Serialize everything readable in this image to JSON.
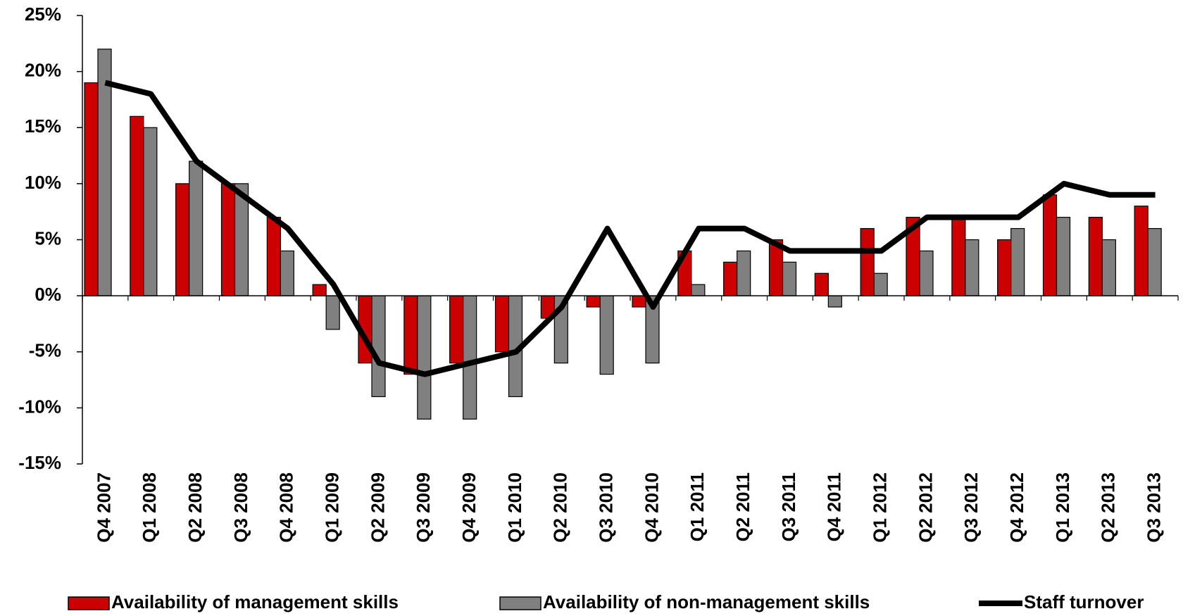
{
  "chart_data": {
    "type": "bar_line",
    "categories": [
      "Q4 2007",
      "Q1 2008",
      "Q2 2008",
      "Q3 2008",
      "Q4 2008",
      "Q1 2009",
      "Q2 2009",
      "Q3 2009",
      "Q4 2009",
      "Q1 2010",
      "Q2 2010",
      "Q3 2010",
      "Q4 2010",
      "Q1 2011",
      "Q2 2011",
      "Q3 2011",
      "Q4 2011",
      "Q1 2012",
      "Q2 2012",
      "Q3 2012",
      "Q4 2012",
      "Q1 2013",
      "Q2 2013",
      "Q3 2013"
    ],
    "series": [
      {
        "name": "Availability of management skills",
        "type": "bar",
        "color": "#cc0000",
        "values": [
          19,
          16,
          10,
          10,
          7,
          1,
          -6,
          -7,
          -6,
          -5,
          -2,
          -1,
          -1,
          4,
          3,
          5,
          2,
          6,
          7,
          7,
          5,
          9,
          7,
          8
        ]
      },
      {
        "name": "Availability of non-management skills",
        "type": "bar",
        "color": "#808080",
        "values": [
          22,
          15,
          12,
          10,
          4,
          -3,
          -9,
          -11,
          -11,
          -9,
          -6,
          -7,
          -6,
          1,
          4,
          3,
          -1,
          2,
          4,
          5,
          6,
          7,
          5,
          6
        ]
      },
      {
        "name": "Staff turnover",
        "type": "line",
        "color": "#000000",
        "values": [
          19,
          18,
          12,
          9,
          6,
          1,
          -6,
          -7,
          -6,
          -5,
          -1,
          6,
          -1,
          6,
          6,
          4,
          4,
          4,
          7,
          7,
          7,
          10,
          9,
          9
        ]
      }
    ],
    "ylim": [
      -15,
      25
    ],
    "yticks": [
      {
        "value": -15,
        "label": "-15%"
      },
      {
        "value": -10,
        "label": "-10%"
      },
      {
        "value": -5,
        "label": "-5%"
      },
      {
        "value": 0,
        "label": "0%"
      },
      {
        "value": 5,
        "label": "5%"
      },
      {
        "value": 10,
        "label": "10%"
      },
      {
        "value": 15,
        "label": "15%"
      },
      {
        "value": 20,
        "label": "20%"
      },
      {
        "value": 25,
        "label": "25%"
      }
    ],
    "legend": "bottom"
  }
}
